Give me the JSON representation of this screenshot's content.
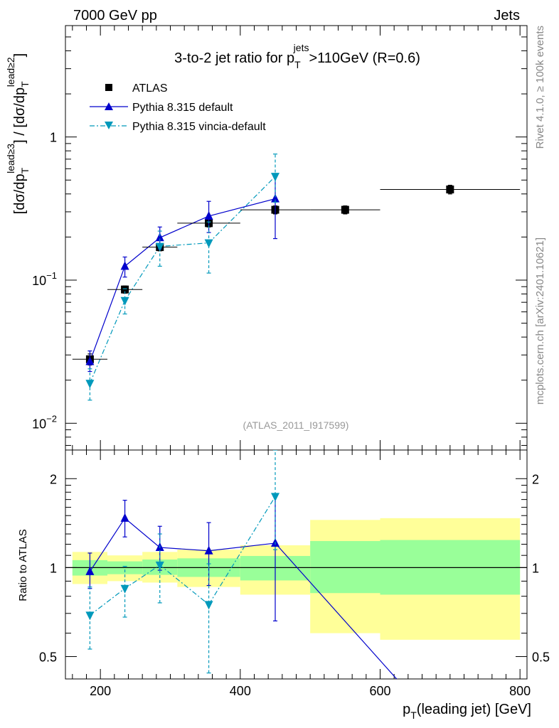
{
  "header": {
    "left_label": "7000 GeV pp",
    "right_label": "Jets"
  },
  "side_labels": {
    "rivet": "Rivet 4.1.0, ≥ 100k events",
    "mcplots": "mcplots.cern.ch [arXiv:2401.10621]"
  },
  "colors": {
    "atlas": "#000000",
    "pythia_default": "#0000cc",
    "vincia": "#0099bb",
    "band_outer": "#ffff99",
    "band_inner": "#99ff99"
  },
  "chart_data": [
    {
      "type": "scatter",
      "panel": "main",
      "title_parts": {
        "prefix": "3-to-2 jet ratio for p",
        "sub": "T",
        "sup": "jets",
        "suffix": ">110GeV (R=0.6)"
      },
      "ylabel_parts": [
        "[dσ/dp",
        "T",
        "lead≥3",
        "] / [dσ/dp",
        "T",
        "lead≥2",
        "]"
      ],
      "analysis_label": "(ATLAS_2011_I917599)",
      "yscale": "log",
      "ylim": [
        0.0065,
        6
      ],
      "xlim": [
        150,
        810
      ],
      "y_ticks": [
        {
          "value": 0.01,
          "base": "10",
          "exp": "−2"
        },
        {
          "value": 0.1,
          "base": "10",
          "exp": "−1"
        },
        {
          "value": 1,
          "base": "1",
          "exp": ""
        }
      ],
      "legend": [
        "ATLAS",
        "Pythia 8.315 default",
        "Pythia 8.315 vincia-default"
      ],
      "series": [
        {
          "name": "ATLAS",
          "marker": "square",
          "x": [
            185,
            235,
            285,
            355,
            450,
            550,
            700
          ],
          "y": [
            0.028,
            0.086,
            0.17,
            0.25,
            0.31,
            0.31,
            0.43
          ],
          "xerr": [
            [
              160,
              210
            ],
            [
              210,
              260
            ],
            [
              260,
              310
            ],
            [
              310,
              400
            ],
            [
              400,
              500
            ],
            [
              500,
              600
            ],
            [
              600,
              800
            ]
          ],
          "yerr": [
            [
              0.0255,
              0.0305
            ],
            [
              0.081,
              0.091
            ],
            [
              0.16,
              0.18
            ],
            [
              0.235,
              0.265
            ],
            [
              0.29,
              0.33
            ],
            [
              0.29,
              0.33
            ],
            [
              0.4,
              0.46
            ]
          ]
        },
        {
          "name": "Pythia 8.315 default",
          "marker": "triangle-up",
          "line": "solid",
          "x": [
            185,
            235,
            285,
            355,
            450
          ],
          "y": [
            0.027,
            0.125,
            0.198,
            0.28,
            0.37
          ],
          "yerr": [
            [
              0.023,
              0.032
            ],
            [
              0.105,
              0.145
            ],
            [
              0.165,
              0.235
            ],
            [
              0.215,
              0.355
            ],
            [
              0.195,
              0.54
            ]
          ]
        },
        {
          "name": "Pythia 8.315 vincia-default",
          "marker": "triangle-down",
          "line": "dashdot",
          "x": [
            185,
            235,
            285,
            355,
            450
          ],
          "y": [
            0.019,
            0.072,
            0.172,
            0.182,
            0.53
          ],
          "yerr": [
            [
              0.0145,
              0.024
            ],
            [
              0.058,
              0.087
            ],
            [
              0.125,
              0.22
            ],
            [
              0.112,
              0.255
            ],
            [
              0.35,
              0.76
            ]
          ]
        }
      ]
    },
    {
      "type": "line",
      "panel": "ratio",
      "ylabel": "Ratio to ATLAS",
      "xlabel_parts": [
        "p",
        "T",
        "(leading jet) [GeV]"
      ],
      "yscale": "log",
      "ylim": [
        0.42,
        2.5
      ],
      "xlim": [
        150,
        810
      ],
      "y_ticks": [
        0.5,
        1,
        2
      ],
      "y_tick_labels": [
        "0.5",
        "1",
        "2"
      ],
      "x_ticks": [
        200,
        400,
        600,
        800
      ],
      "x_tick_labels": [
        "200",
        "400",
        "600",
        "800"
      ],
      "reference": 1,
      "bands": [
        {
          "x": [
            160,
            210
          ],
          "outer": [
            0.88,
            1.13
          ],
          "inner": [
            0.94,
            1.06
          ]
        },
        {
          "x": [
            210,
            260
          ],
          "outer": [
            0.9,
            1.1
          ],
          "inner": [
            0.95,
            1.05
          ]
        },
        {
          "x": [
            260,
            310
          ],
          "outer": [
            0.89,
            1.13
          ],
          "inner": [
            0.945,
            1.065
          ]
        },
        {
          "x": [
            310,
            400
          ],
          "outer": [
            0.86,
            1.15
          ],
          "inner": [
            0.93,
            1.075
          ]
        },
        {
          "x": [
            400,
            500
          ],
          "outer": [
            0.81,
            1.19
          ],
          "inner": [
            0.905,
            1.095
          ]
        },
        {
          "x": [
            500,
            600
          ],
          "outer": [
            0.6,
            1.45
          ],
          "inner": [
            0.82,
            1.23
          ]
        },
        {
          "x": [
            600,
            800
          ],
          "outer": [
            0.57,
            1.47
          ],
          "inner": [
            0.81,
            1.24
          ]
        }
      ],
      "series": [
        {
          "name": "Pythia 8.315 default",
          "marker": "triangle-up",
          "line": "solid",
          "x": [
            185,
            235,
            285,
            355,
            450,
            640
          ],
          "y": [
            0.97,
            1.47,
            1.17,
            1.14,
            1.21,
            0.38
          ],
          "yerr": [
            [
              0.85,
              1.12
            ],
            [
              1.27,
              1.69
            ],
            [
              0.98,
              1.38
            ],
            [
              0.87,
              1.42
            ],
            [
              0.66,
              1.75
            ],
            null
          ],
          "marker_mask": [
            true,
            true,
            true,
            true,
            true,
            false
          ]
        },
        {
          "name": "Pythia 8.315 vincia-default",
          "marker": "triangle-down",
          "line": "dashdot",
          "x": [
            185,
            235,
            285,
            355,
            450
          ],
          "y": [
            0.69,
            0.85,
            1.02,
            0.75,
            1.74
          ],
          "yerr": [
            [
              0.53,
              0.86
            ],
            [
              0.68,
              1.01
            ],
            [
              0.76,
              1.3
            ],
            [
              0.44,
              1.03
            ],
            [
              1.15,
              2.5
            ]
          ]
        }
      ]
    }
  ]
}
